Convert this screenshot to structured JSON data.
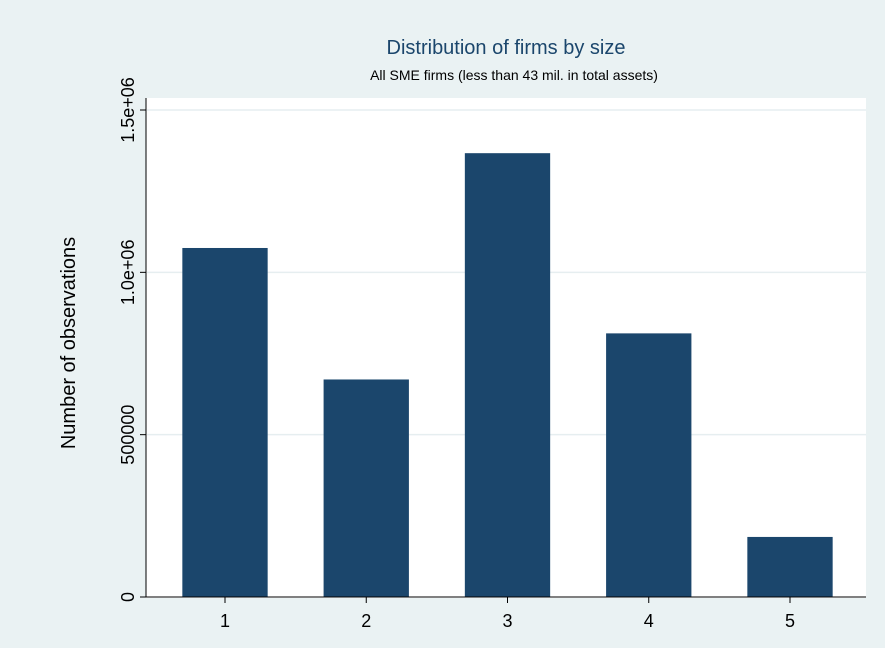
{
  "chart_data": {
    "type": "bar",
    "title": "Distribution of firms by size",
    "subtitle": "All SME firms (less than 43 mil. in total assets)",
    "xlabel": "",
    "ylabel": "Number of observations",
    "categories": [
      "1",
      "2",
      "3",
      "4",
      "5"
    ],
    "values": [
      1075000,
      670000,
      1367000,
      812000,
      185000
    ],
    "ylim": [
      0,
      1500000
    ],
    "yticks": [
      {
        "value": 0,
        "label": "0"
      },
      {
        "value": 500000,
        "label": "500000"
      },
      {
        "value": 1000000,
        "label": "1.0e+06"
      },
      {
        "value": 1500000,
        "label": "1.5e+06"
      }
    ],
    "grid": true,
    "legend": "none",
    "colors": {
      "bar": "#1b466c",
      "background": "#eaf2f3",
      "plot_area": "#ffffff",
      "grid": "#e6eef0",
      "title": "#1b466c",
      "text": "#000000"
    }
  }
}
